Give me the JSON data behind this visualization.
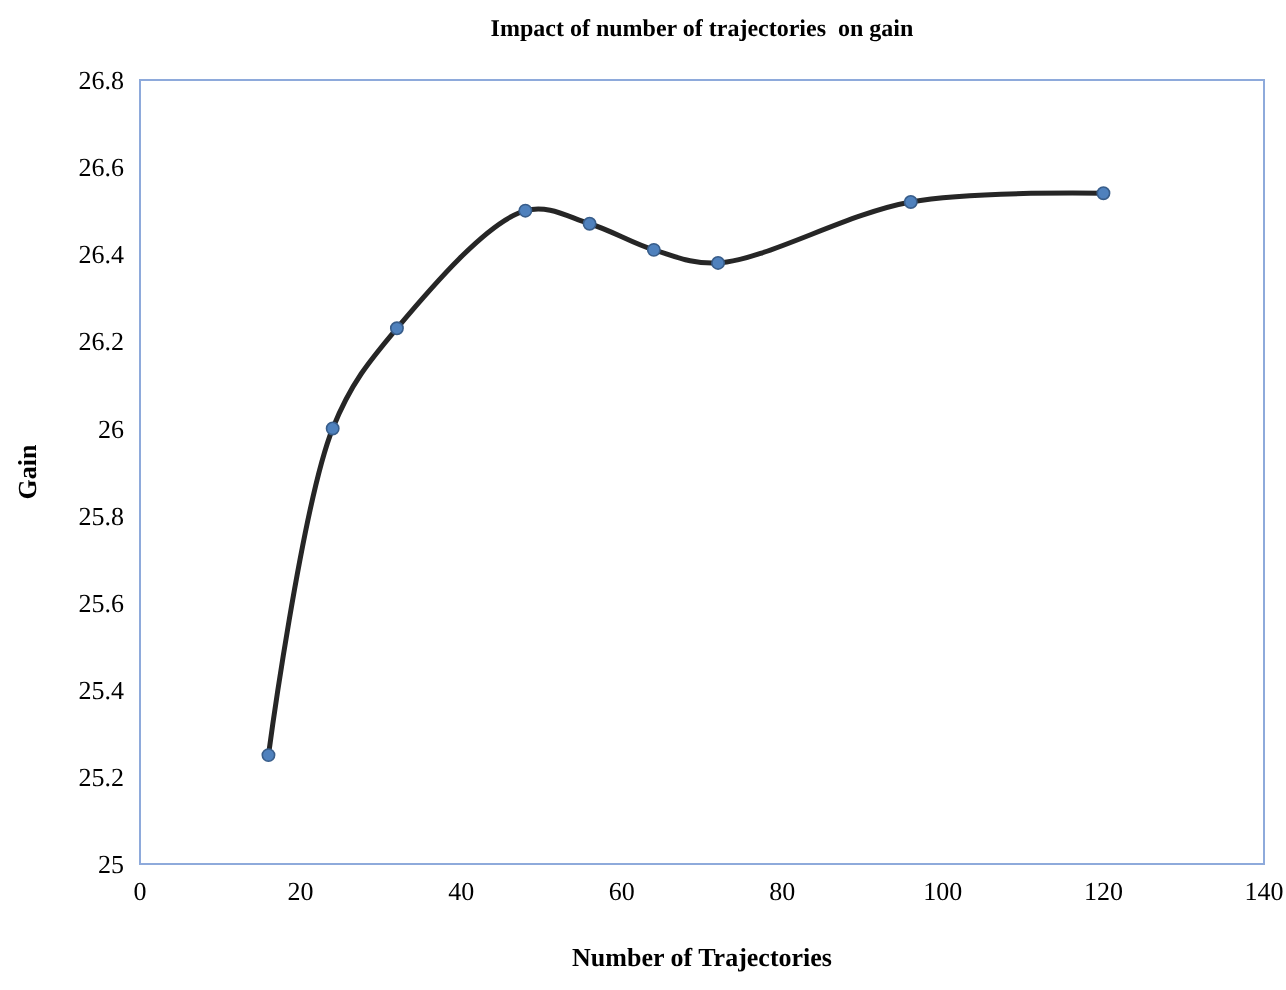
{
  "chart_data": {
    "type": "line",
    "title": "Impact of number of trajectories  on gain",
    "xlabel": "Number of Trajectories",
    "ylabel": "Gain",
    "x": [
      16,
      24,
      32,
      48,
      56,
      64,
      72,
      96,
      120
    ],
    "series": [
      {
        "color": "#262626",
        "values": [
          25.25,
          26.0,
          26.23,
          26.5,
          26.47,
          26.41,
          26.38,
          26.52,
          26.54
        ]
      }
    ],
    "xlim": [
      0,
      140
    ],
    "xticks": [
      0,
      20,
      40,
      60,
      80,
      100,
      120,
      140
    ],
    "ylim": [
      25,
      26.8
    ],
    "yticks": [
      25,
      25.2,
      25.4,
      25.6,
      25.8,
      26,
      26.2,
      26.4,
      26.6,
      26.8
    ],
    "grid": false,
    "marker": "circle",
    "line_style": "solid"
  }
}
